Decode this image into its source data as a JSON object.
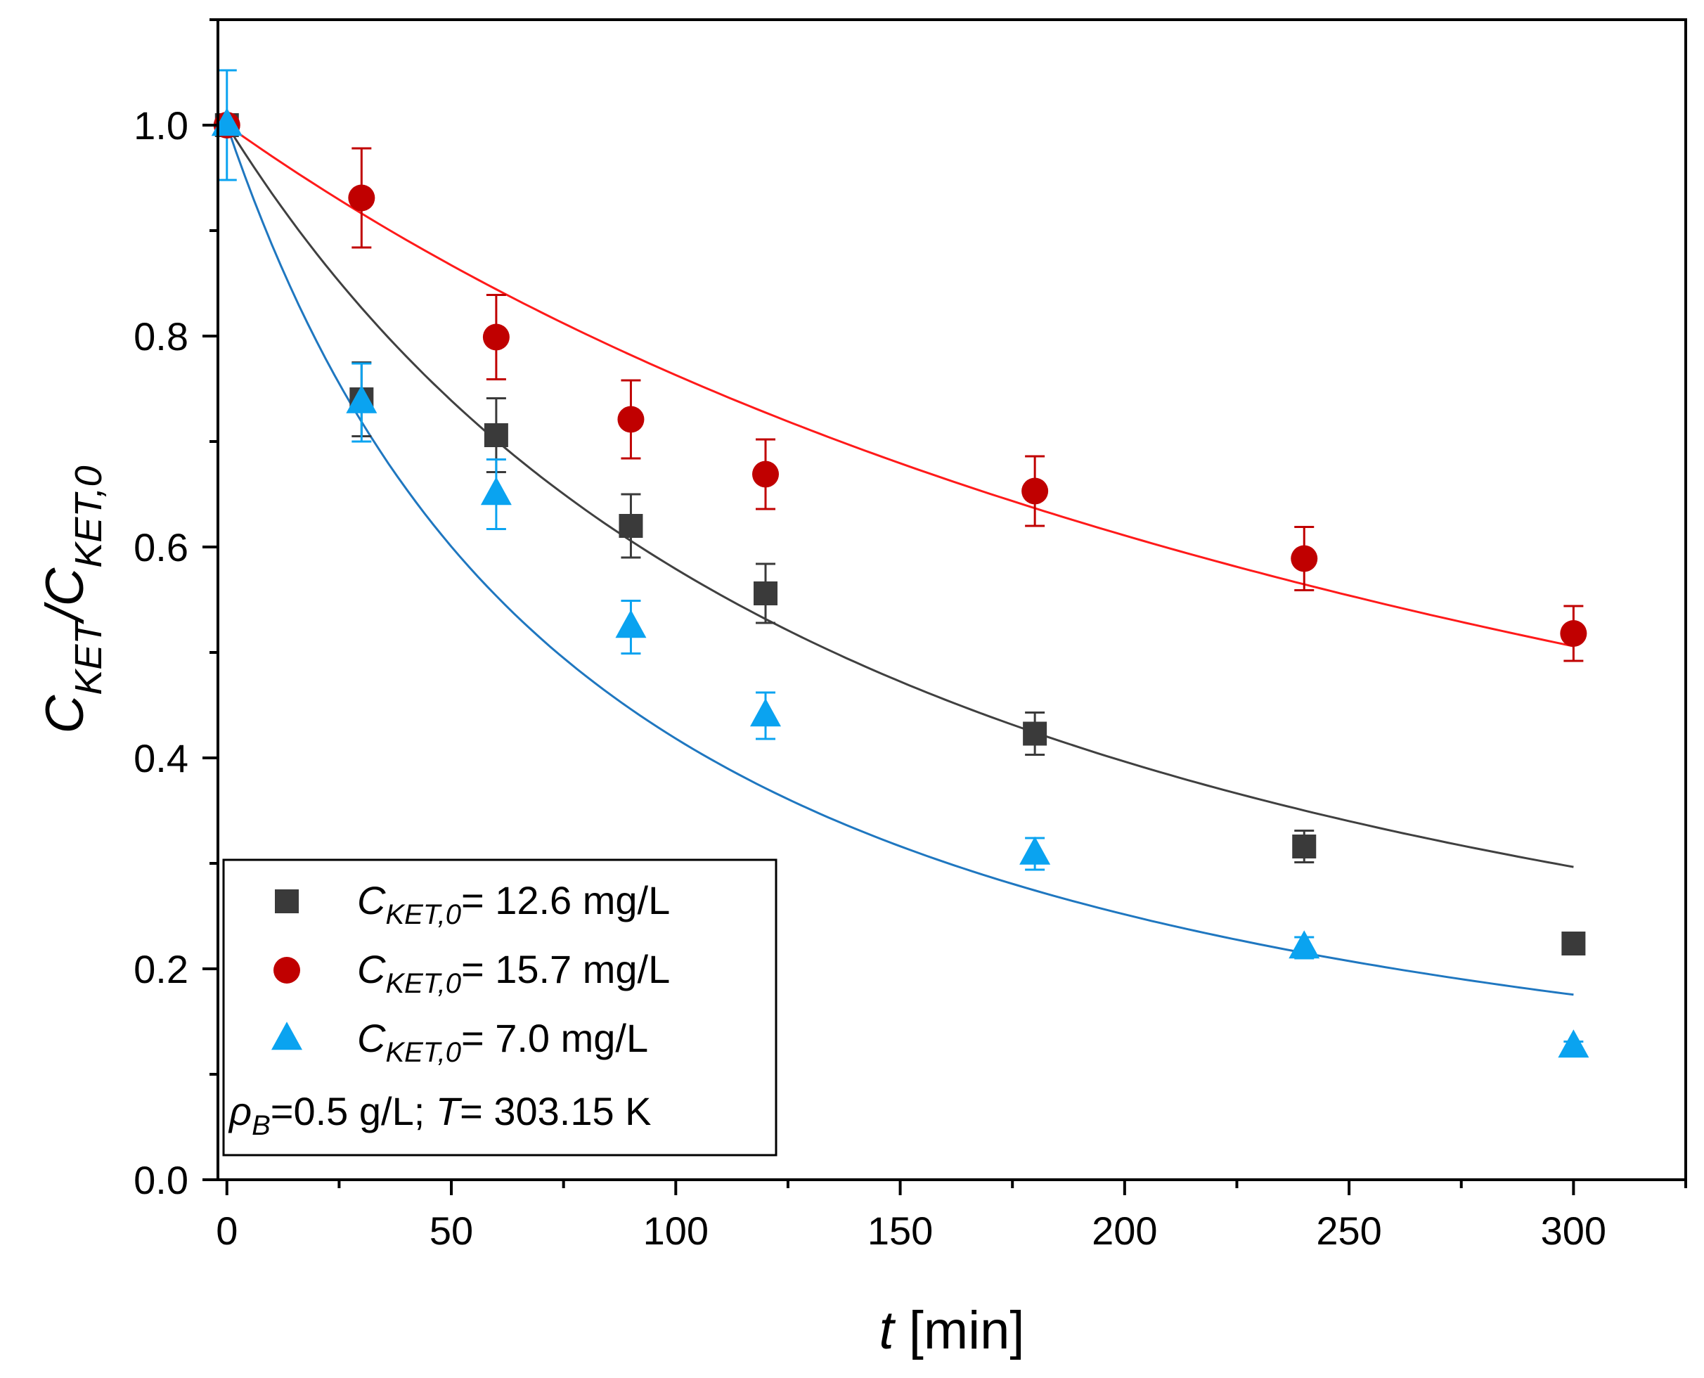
{
  "chart_data": {
    "type": "scatter",
    "title": "",
    "xlabel": {
      "var": "t",
      "unit": " [min]"
    },
    "ylabel": {
      "main": "C",
      "sub": "KET",
      "sep": "/C",
      "sub2": "KET,0"
    },
    "xlim": [
      -2,
      325
    ],
    "ylim": [
      0,
      1.1
    ],
    "xticks": [
      0,
      50,
      100,
      150,
      200,
      250,
      300
    ],
    "yticks": [
      0.0,
      0.2,
      0.4,
      0.6,
      0.8,
      1.0
    ],
    "xtick_labels": [
      "0",
      "50",
      "100",
      "150",
      "200",
      "250",
      "300"
    ],
    "ytick_labels": [
      "0.0",
      "0.2",
      "0.4",
      "0.6",
      "0.8",
      "1.0"
    ],
    "legend_position": "bottom-left",
    "series": [
      {
        "name": "C_KET,0= 12.6 mg/L",
        "label_var": "C",
        "label_sub": "KET,0",
        "label_rest": "= 12.6 mg/L",
        "marker": "square",
        "color": "#3a3a3a",
        "fit_color": "#404040",
        "x": [
          0,
          30,
          60,
          90,
          120,
          180,
          240,
          300
        ],
        "y": [
          1.0,
          0.74,
          0.706,
          0.62,
          0.556,
          0.423,
          0.316,
          0.224
        ],
        "err": [
          0.0,
          0.035,
          0.035,
          0.03,
          0.028,
          0.02,
          0.015,
          0.008
        ],
        "fit_k": 0.00685,
        "fit_n": 1.8
      },
      {
        "name": "C_KET,0= 15.7 mg/L",
        "label_var": "C",
        "label_sub": "KET,0",
        "label_rest": "= 15.7 mg/L",
        "marker": "circle",
        "color": "#c00000",
        "fit_color": "#ff1a1a",
        "x": [
          0,
          30,
          60,
          90,
          120,
          180,
          240,
          300
        ],
        "y": [
          1.0,
          0.931,
          0.799,
          0.721,
          0.669,
          0.653,
          0.589,
          0.518
        ],
        "err": [
          0.0,
          0.047,
          0.04,
          0.037,
          0.033,
          0.033,
          0.03,
          0.026
        ],
        "fit_k": 0.00302,
        "fit_n": 1.8
      },
      {
        "name": "C_KET,0= 7.0 mg/L",
        "label_var": "C",
        "label_sub": "KET,0",
        "label_rest": "= 7.0 mg/L",
        "marker": "triangle",
        "color": "#0aa3f0",
        "fit_color": "#1f77c0",
        "x": [
          0,
          30,
          60,
          90,
          120,
          180,
          240,
          300
        ],
        "y": [
          1.0,
          0.737,
          0.65,
          0.524,
          0.44,
          0.309,
          0.22,
          0.126
        ],
        "err": [
          0.052,
          0.037,
          0.033,
          0.025,
          0.022,
          0.015,
          0.01,
          0.005
        ],
        "fit_k": 0.0126,
        "fit_n": 1.8
      }
    ],
    "annotation": {
      "rho": "ρ",
      "rho_sub": "B",
      "rest": "=0.5 g/L; ",
      "T": "T",
      "T_rest": "= 303.15 K"
    }
  }
}
